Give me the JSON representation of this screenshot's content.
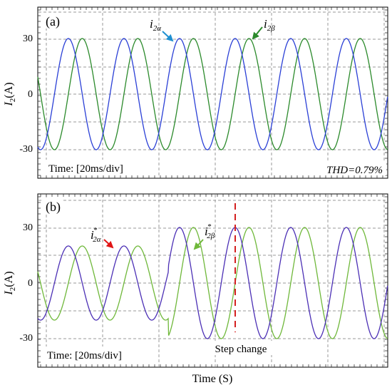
{
  "figure": {
    "xlabel": "Time (S)"
  },
  "chart_data": [
    {
      "type": "line",
      "panel_label": "(a)",
      "ylabel_main": "I",
      "ylabel_sub": "2",
      "ylabel_unit": "(A)",
      "y_ticks": [
        "30",
        "0",
        "-30"
      ],
      "ylim": [
        -45,
        45
      ],
      "time_scale": "Time: [20ms/div]",
      "thd": "THD=0.79%",
      "grid": true,
      "x_window_ms": [
        0,
        120
      ],
      "series": [
        {
          "id": "i2a",
          "sym": "i",
          "sub": "2α",
          "sup": "",
          "color": "#2a3fd6",
          "amplitude": 30,
          "period_ms": 20,
          "phase_deg": 0
        },
        {
          "id": "i2b",
          "sym": "i",
          "sub": "2β",
          "sup": "",
          "color": "#2b8a2b",
          "amplitude": 30,
          "period_ms": 20,
          "phase_deg": -90
        }
      ],
      "arrows": [
        {
          "target": "i2a",
          "color": "#1e8fd0"
        },
        {
          "target": "i2b",
          "color": "#2b8a2b"
        }
      ]
    },
    {
      "type": "line",
      "panel_label": "(b)",
      "ylabel_main": "I",
      "ylabel_sub": "2",
      "ylabel_unit": "(A)",
      "y_ticks": [
        "30",
        "0",
        "-30"
      ],
      "ylim": [
        -45,
        45
      ],
      "time_scale": "Time: [20ms/div]",
      "annotation": "Step change",
      "step_time_ms": 55,
      "grid": true,
      "x_window_ms": [
        0,
        120
      ],
      "series": [
        {
          "id": "i2a_ref",
          "sym": "i",
          "sub": "2α",
          "sup": "*",
          "color": "#4b2fb5",
          "amplitude_before": 20,
          "amplitude_after": 30,
          "period_ms": 20,
          "phase_deg": 0
        },
        {
          "id": "i2b_ref",
          "sym": "i",
          "sub": "2β",
          "sup": "*",
          "color": "#6fb83a",
          "amplitude_before": 20,
          "amplitude_after": 30,
          "period_ms": 20,
          "phase_deg": -90
        }
      ],
      "arrows": [
        {
          "target": "i2a_ref",
          "color": "#e01515"
        },
        {
          "target": "i2b_ref",
          "color": "#6fb83a"
        }
      ]
    }
  ]
}
